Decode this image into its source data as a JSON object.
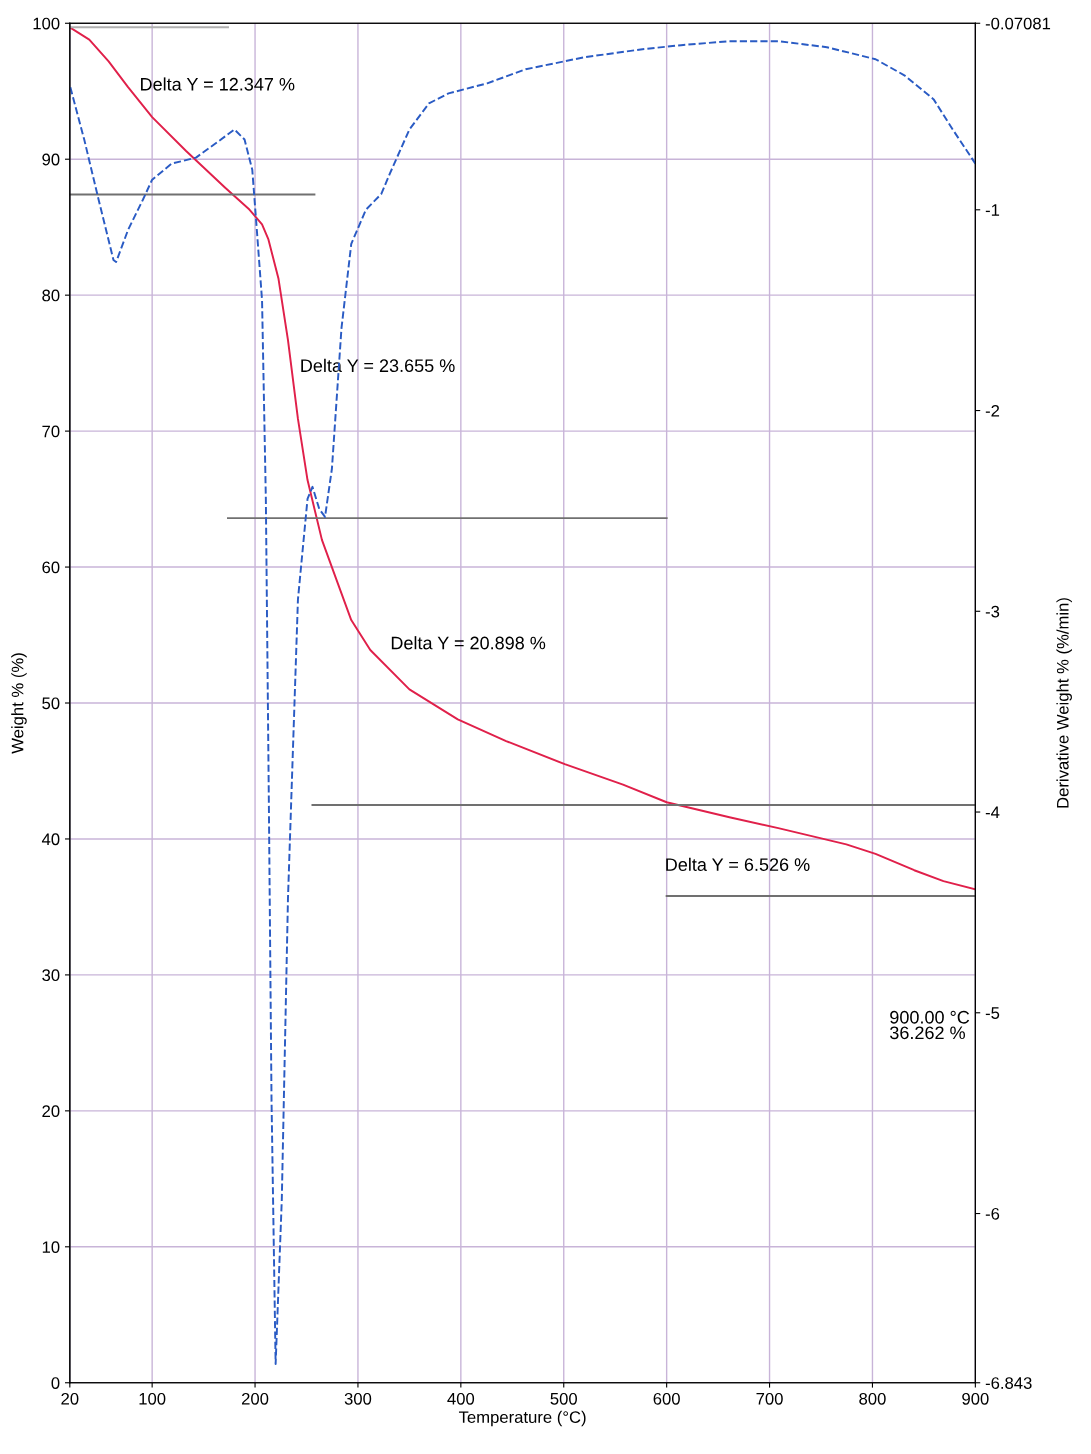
{
  "chart_data": {
    "type": "line",
    "xlabel": "Temperature (°C)",
    "ylabel": "Weight % (%)",
    "y2label": "Derivative Weight % (%/min)",
    "xlim": [
      20,
      900
    ],
    "xticks": [
      20,
      100,
      200,
      300,
      400,
      500,
      600,
      700,
      800,
      900
    ],
    "ylim": [
      0,
      100
    ],
    "yticks": [
      0,
      10,
      20,
      30,
      40,
      50,
      60,
      70,
      80,
      90,
      100
    ],
    "y2lim": [
      -6.843,
      -0.07081
    ],
    "y2ticks": [
      -6.843,
      -6,
      -5,
      -4,
      -3,
      -2,
      -1,
      -0.07081
    ],
    "grid": true,
    "marker": "none",
    "series": [
      {
        "color": "#e0204a",
        "line_style": "solid",
        "x": [
          20,
          38.9,
          57.7,
          76.6,
          100,
          133,
          171,
          194.5,
          206.8,
          213,
          222.8,
          232,
          241.7,
          251,
          265,
          279,
          293.5,
          312,
          350,
          397,
          444,
          501,
          557.6,
          600,
          661,
          708.5,
          774.6,
          803,
          840.6,
          869,
          900
        ],
        "values": [
          99.7,
          98.8,
          97.2,
          95.3,
          93.1,
          90.6,
          87.9,
          86.3,
          85.2,
          84.1,
          81.2,
          76.7,
          70.9,
          66.4,
          62.0,
          59.1,
          56.1,
          53.9,
          51.0,
          48.8,
          47.2,
          45.5,
          44.0,
          42.7,
          41.6,
          40.8,
          39.6,
          38.9,
          37.7,
          36.9,
          36.3
        ]
      },
      {
        "color": "#2a5bc4",
        "line_style": "dashed",
        "axis": "y2",
        "x": [
          20.5,
          34,
          48,
          62.4,
          65,
          76.6,
          91,
          100,
          119,
          142.6,
          161.5,
          180,
          189.8,
          197.3,
          201,
          206.8,
          210.5,
          213.4,
          216,
          220,
          226,
          232,
          241.7,
          251,
          255.8,
          262.4,
          268,
          274.7,
          284,
          293.5,
          307.7,
          322.8,
          331,
          350,
          369,
          388,
          425.6,
          463,
          520,
          576.5,
          614,
          661,
          708.5,
          755.7,
          803,
          831,
          859.5,
          878,
          900
        ],
        "values": [
          -0.39,
          -0.65,
          -0.95,
          -1.25,
          -1.26,
          -1.1,
          -0.95,
          -0.85,
          -0.77,
          -0.74,
          -0.67,
          -0.6,
          -0.65,
          -0.8,
          -1.05,
          -1.45,
          -2.44,
          -3.94,
          -5.43,
          -6.75,
          -5.93,
          -4.43,
          -2.94,
          -2.44,
          -2.38,
          -2.49,
          -2.53,
          -2.29,
          -1.59,
          -1.17,
          -1.0,
          -0.92,
          -0.82,
          -0.6,
          -0.47,
          -0.42,
          -0.37,
          -0.3,
          -0.24,
          -0.2,
          -0.18,
          -0.16,
          -0.16,
          -0.19,
          -0.25,
          -0.33,
          -0.45,
          -0.6,
          -0.77
        ]
      },
      {
        "color": "#b0b0b0",
        "line_style": "solid",
        "x": [
          20,
          173.7
        ],
        "values": [
          99.7,
          99.7
        ]
      },
      {
        "color": "#707070",
        "line_style": "solid",
        "x": [
          20,
          257.7
        ],
        "values": [
          87.4,
          87.4
        ]
      },
      {
        "color": "#707070",
        "line_style": "solid",
        "x": [
          173.7,
          600
        ],
        "values": [
          63.6,
          63.6
        ]
      },
      {
        "color": "#707070",
        "line_style": "solid",
        "x": [
          255.8,
          900
        ],
        "values": [
          42.5,
          42.5
        ]
      },
      {
        "color": "#707070",
        "line_style": "solid",
        "x": [
          600,
          900
        ],
        "values": [
          35.8,
          35.8
        ]
      }
    ],
    "annotations": [
      "Delta Y = 12.347 %",
      "Delta Y = 23.655 %",
      "Delta Y = 20.898 %",
      "Delta Y = 6.526 %",
      "900.00 °C\n36.262 %"
    ]
  }
}
